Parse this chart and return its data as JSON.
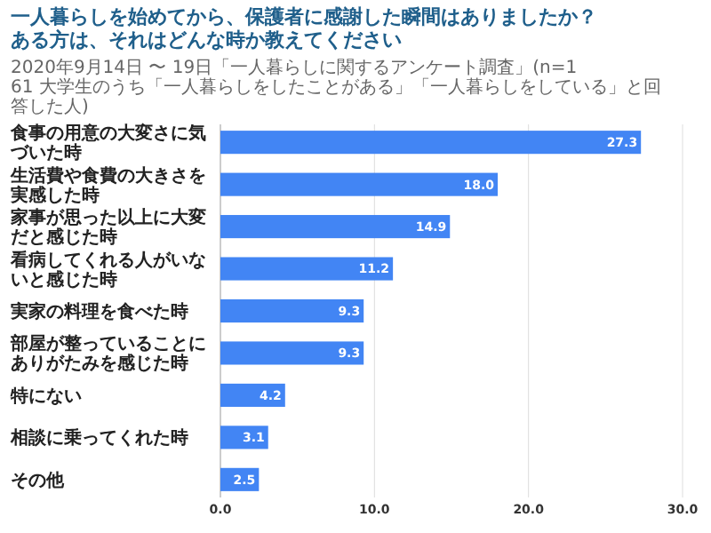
{
  "chart_data": {
    "type": "bar",
    "orientation": "horizontal",
    "title": "一人暮らしを始めてから、保護者に感謝した瞬間はありましたか？ある方は、それはどんな時か教えてください",
    "subtitle": "2020年9月14日 〜 19日「一人暮らしに関するアンケート調査」(n=161 大学生のうち「一人暮らしをしたことがある」「一人暮らしをしている」と回答した人)",
    "categories": [
      "食事の用意の大変さに気づいた時",
      "生活費や食費の大きさを実感した時",
      "家事が思った以上に大変だと感じた時",
      "看病してくれる人がいないと感じた時",
      "実家の料理を食べた時",
      "部屋が整っていることにありがたみを感じた時",
      "特にない",
      "相談に乗ってくれた時",
      "その他"
    ],
    "values": [
      27.3,
      18.0,
      14.9,
      11.2,
      9.3,
      9.3,
      4.2,
      3.1,
      2.5
    ],
    "value_labels": [
      "27.3",
      "18.0",
      "14.9",
      "11.2",
      "9.3",
      "9.3",
      "4.2",
      "3.1",
      "2.5"
    ],
    "color": "#4285f4",
    "xlim": [
      0,
      30
    ],
    "xticks": [
      {
        "value": 0,
        "label": "0.0"
      },
      {
        "value": 10,
        "label": "10.0"
      },
      {
        "value": 20,
        "label": "20.0"
      },
      {
        "value": 30,
        "label": "30.0"
      }
    ],
    "grid": "x"
  }
}
